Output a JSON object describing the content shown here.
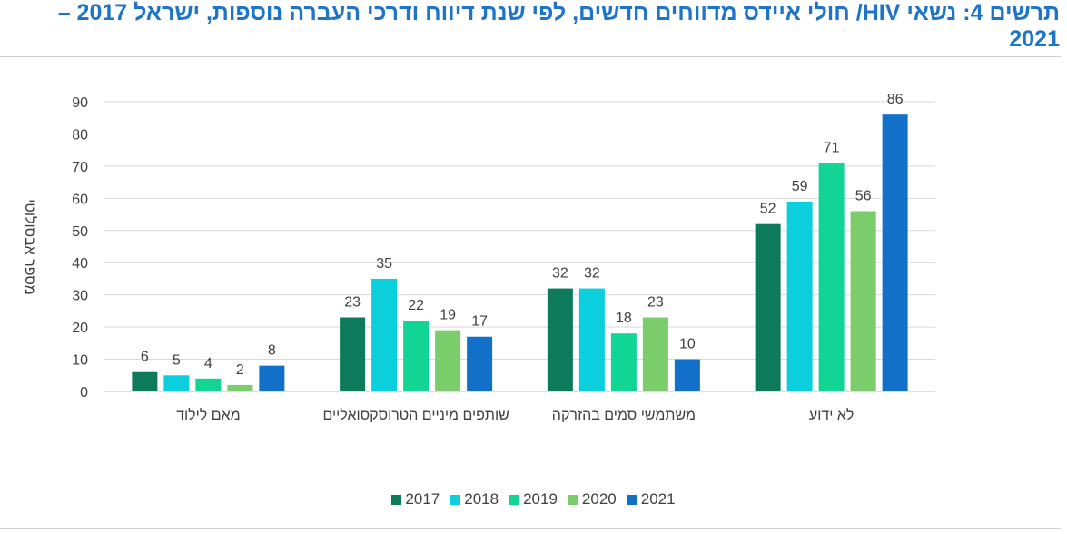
{
  "title": "תרשים 4: נשאי HIV/ חולי איידס מדווחים חדשים, לפי שנת דיווח ודרכי העברה נוספות, ישראל 2017 – 2021",
  "chart_data": {
    "type": "bar",
    "ylabel": "מספר אבסולוטי",
    "ylim": [
      0,
      90
    ],
    "yticks": [
      0,
      10,
      20,
      30,
      40,
      50,
      60,
      70,
      80,
      90
    ],
    "grid": true,
    "legend_position": "bottom",
    "categories": [
      "מאם לילוד",
      "שותפים מיניים הטרוסקסואליים",
      "משתמשי סמים בהזרקה",
      "לא ידוע"
    ],
    "series": [
      {
        "name": "2017",
        "color": "#0e7a5c",
        "values": [
          6,
          23,
          32,
          52
        ]
      },
      {
        "name": "2018",
        "color": "#0bcfdc",
        "values": [
          5,
          35,
          32,
          59
        ]
      },
      {
        "name": "2019",
        "color": "#12d494",
        "values": [
          4,
          22,
          18,
          71
        ]
      },
      {
        "name": "2020",
        "color": "#7bcc6a",
        "values": [
          2,
          19,
          23,
          56
        ]
      },
      {
        "name": "2021",
        "color": "#1370c9",
        "values": [
          8,
          17,
          10,
          86
        ]
      }
    ]
  }
}
